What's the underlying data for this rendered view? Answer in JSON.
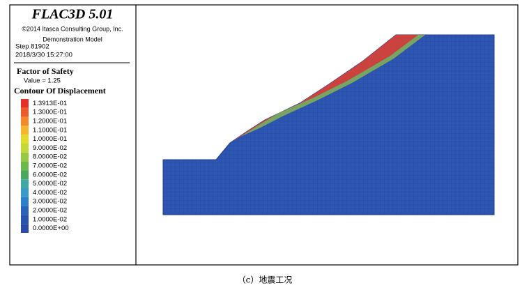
{
  "header": {
    "title": "FLAC3D 5.01",
    "copyright": "©2014 Itasca Consulting Group, Inc.",
    "model": "Demonstration Model",
    "step": "Step 81902",
    "date": "2018/3/30 15:27:00"
  },
  "factor": {
    "title": "Factor of Safety",
    "value": "Value = 1.25"
  },
  "legend": {
    "title": "Contour Of Displacement",
    "entries": [
      {
        "label": "1.3913E-01",
        "color": "#e5302a"
      },
      {
        "label": "1.3000E-01",
        "color": "#ee5a2a"
      },
      {
        "label": "1.2000E-01",
        "color": "#f4892b"
      },
      {
        "label": "1.1000E-01",
        "color": "#f3b62c"
      },
      {
        "label": "1.0000E-01",
        "color": "#e6d92e"
      },
      {
        "label": "9.0000E-02",
        "color": "#c4d83a"
      },
      {
        "label": "8.0000E-02",
        "color": "#98c840"
      },
      {
        "label": "7.0000E-02",
        "color": "#6bb84b"
      },
      {
        "label": "6.0000E-02",
        "color": "#4aa85e"
      },
      {
        "label": "5.0000E-02",
        "color": "#3ea9a2"
      },
      {
        "label": "4.0000E-02",
        "color": "#3a9bc9"
      },
      {
        "label": "3.0000E-02",
        "color": "#2e7fcb"
      },
      {
        "label": "2.0000E-02",
        "color": "#2a62bb"
      },
      {
        "label": "1.0000E-02",
        "color": "#2a52ad"
      },
      {
        "label": "0.0000E+00",
        "color": "#2a4aa6"
      }
    ]
  },
  "caption": "（c）地震工况"
}
